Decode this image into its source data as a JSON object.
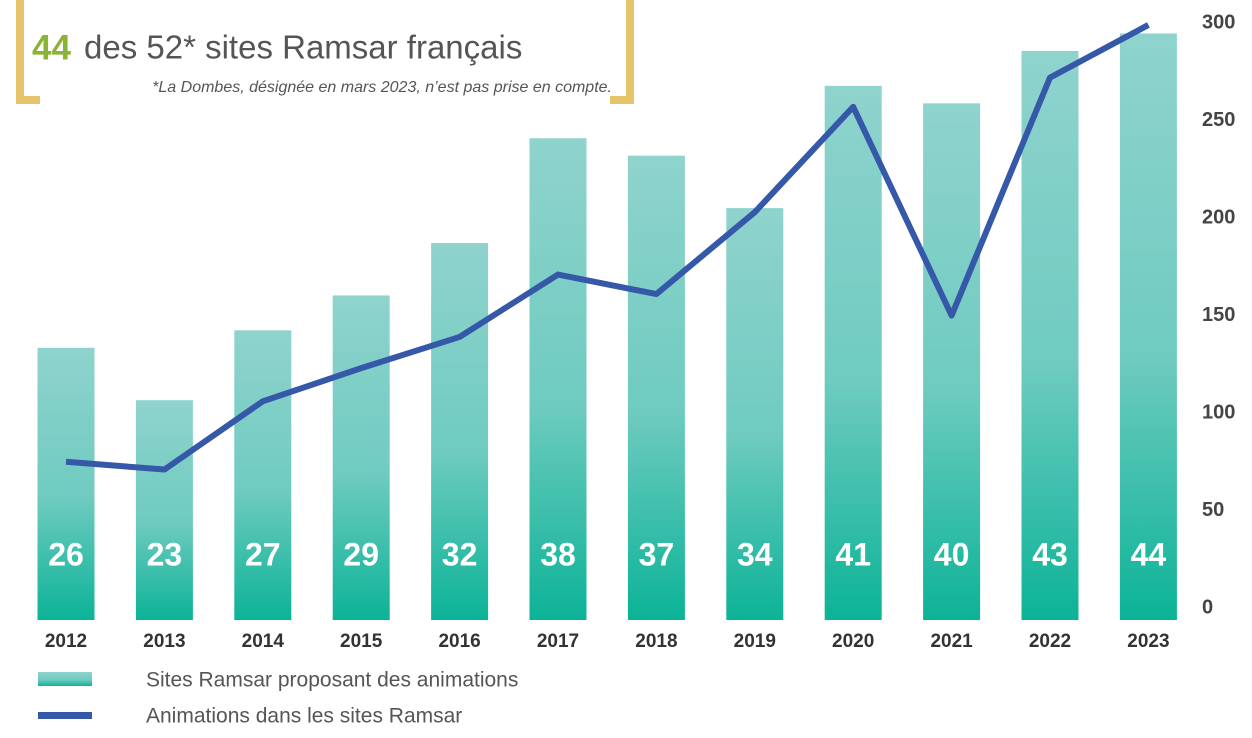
{
  "chart_data": {
    "type": "bar",
    "title_highlight": "44",
    "title": "des 52* sites Ramsar français",
    "subtitle": "*La Dombes, désignée en mars 2023, n’est pas prise en compte.",
    "categories": [
      "2012",
      "2013",
      "2014",
      "2015",
      "2016",
      "2017",
      "2018",
      "2019",
      "2020",
      "2021",
      "2022",
      "2023"
    ],
    "series": [
      {
        "name": "Sites Ramsar proposant des animations",
        "type": "bar",
        "color": "#1bb8a0",
        "values": [
          26,
          23,
          27,
          29,
          32,
          38,
          37,
          34,
          41,
          40,
          43,
          44
        ]
      },
      {
        "name": "Animations dans les sites Ramsar",
        "type": "line",
        "axis": "y2",
        "color": "#3558a8",
        "values": [
          75,
          71,
          106,
          123,
          139,
          171,
          161,
          203,
          257,
          150,
          272,
          299
        ]
      }
    ],
    "ylim": [
      11.1,
      44.6
    ],
    "y2lim": [
      0,
      300
    ],
    "y2ticks": [
      0,
      50,
      100,
      150,
      200,
      250,
      300
    ]
  }
}
